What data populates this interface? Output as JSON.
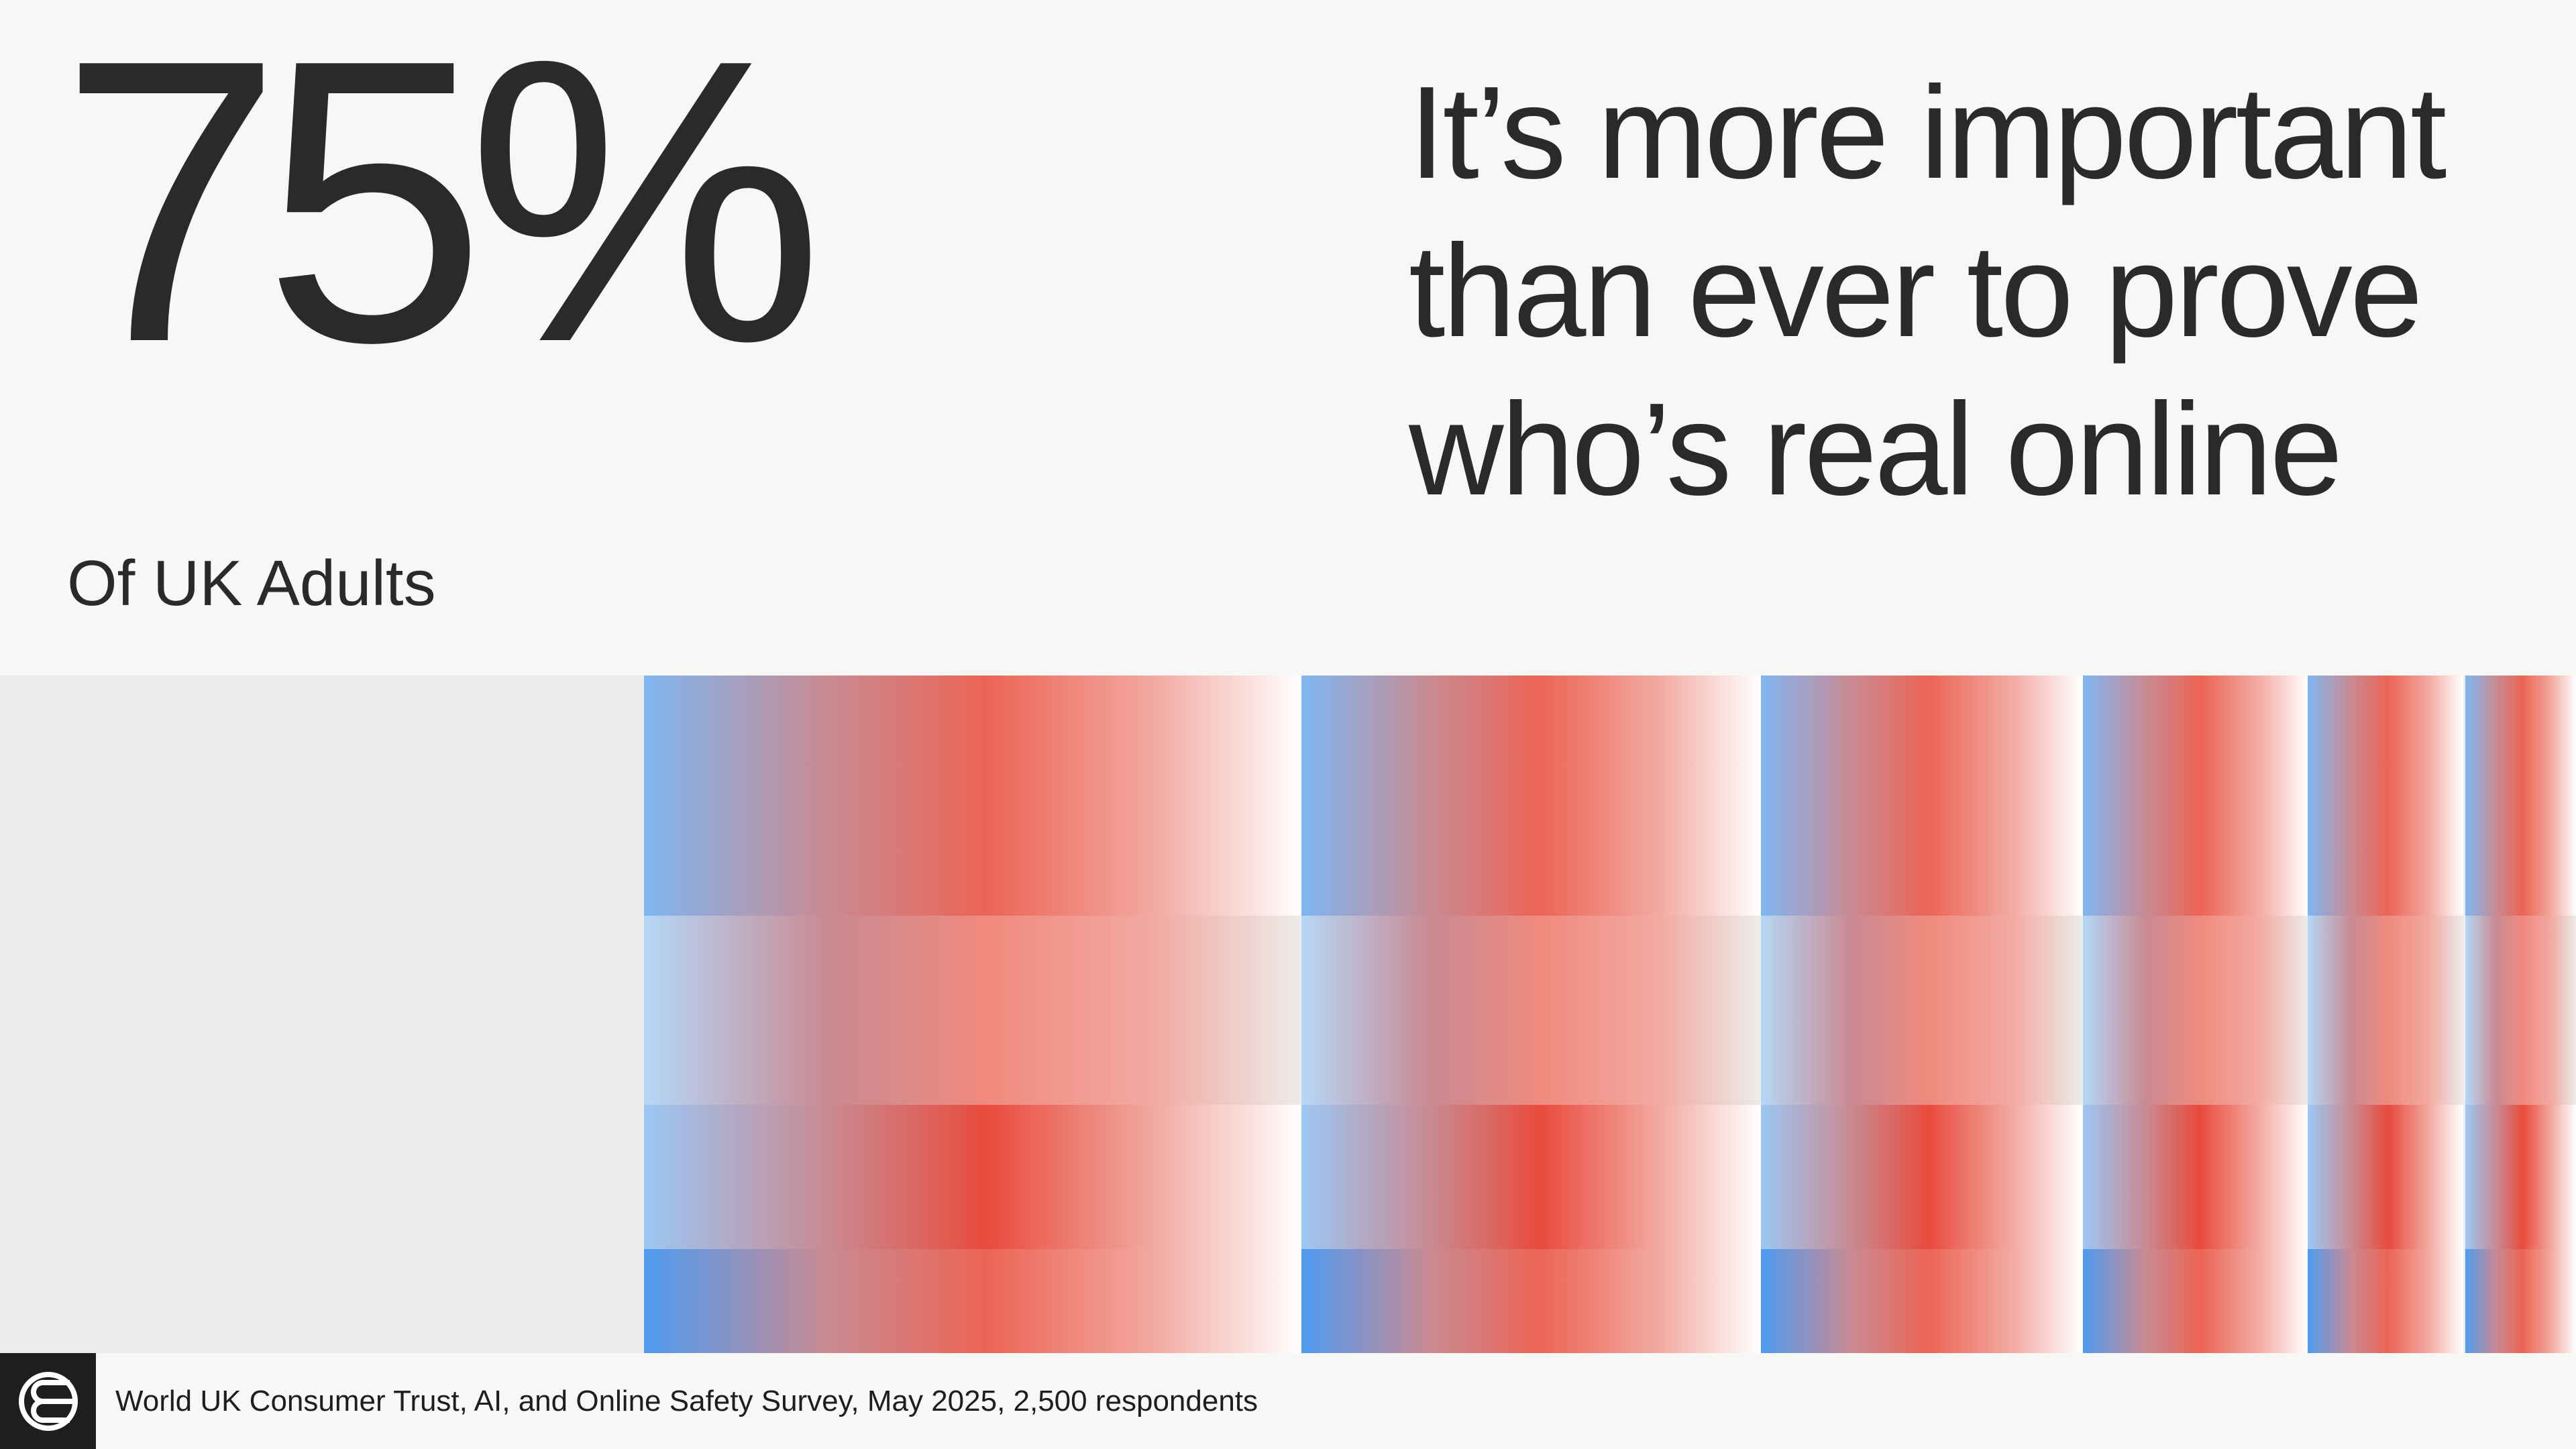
{
  "stat": {
    "value": "75%",
    "caption": "Of UK Adults"
  },
  "headline": "It’s more important than ever to prove who’s real online",
  "source": "World UK Consumer Trust, AI, and Online Safety Survey, May 2025, 2,500 respondents",
  "logo": {
    "icon": "world-logo-icon"
  },
  "colors": {
    "background": "#f7f7f5",
    "panel": "#ececea",
    "text": "#2a2a28",
    "blue": "#4f9bf0",
    "red": "#e84b3c",
    "logo_bg": "#1e1e1e"
  }
}
